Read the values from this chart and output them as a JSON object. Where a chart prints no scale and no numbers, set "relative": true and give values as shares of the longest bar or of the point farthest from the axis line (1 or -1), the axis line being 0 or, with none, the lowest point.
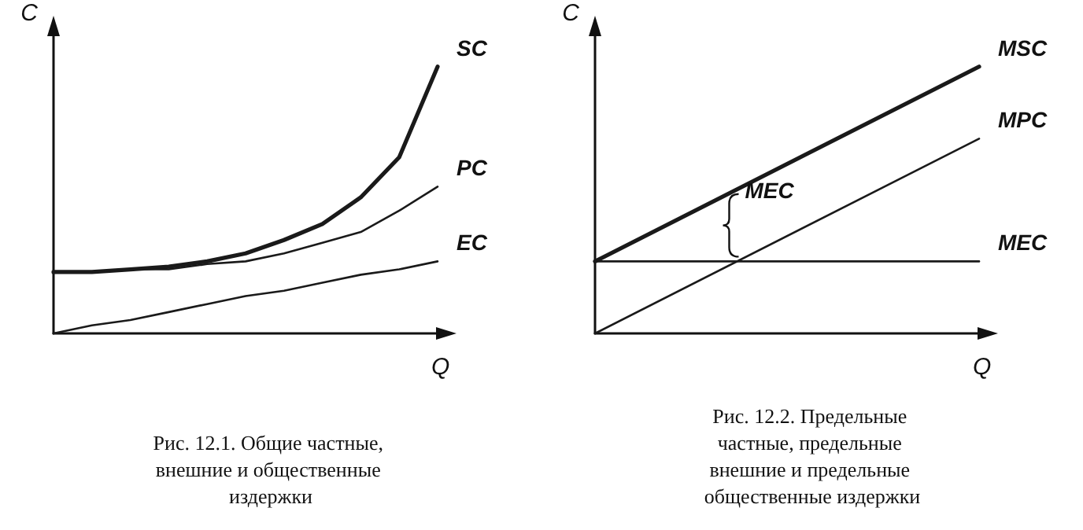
{
  "chart_data": [
    {
      "type": "line",
      "title": "Рис. 12.1. Общие частные, внешние и общественные издержки",
      "xlabel": "Q",
      "ylabel": "C",
      "relative": true,
      "grid": false,
      "legend": false,
      "marker": "none",
      "line_style": "solid",
      "categories": [
        null,
        null,
        null,
        null,
        null,
        null,
        null,
        null,
        null,
        null,
        null
      ],
      "series": [
        {
          "name": "SC",
          "color": "#1a1a1a",
          "values": [
            0.23,
            0.23,
            0.24,
            0.25,
            0.27,
            0.3,
            0.35,
            0.41,
            0.51,
            0.66,
            1
          ]
        },
        {
          "name": "PC",
          "color": "#1a1a1a",
          "values": [
            0.23,
            0.23,
            0.24,
            0.24,
            0.26,
            0.27,
            0.3,
            0.34,
            0.38,
            0.46,
            0.55
          ]
        },
        {
          "name": "EC",
          "color": "#1a1a1a",
          "values": [
            0,
            0.03,
            0.05,
            0.08,
            0.11,
            0.14,
            0.16,
            0.19,
            0.22,
            0.24,
            0.27
          ]
        }
      ]
    },
    {
      "type": "line",
      "title": "Рис. 12.2. Предельные частные, предельные внешние и предельные общественные издержки",
      "xlabel": "Q",
      "ylabel": "C",
      "relative": true,
      "grid": false,
      "legend": false,
      "marker": "none",
      "line_style": "solid",
      "annotations": [
        "MEC"
      ],
      "categories": [
        null,
        null
      ],
      "series": [
        {
          "name": "MSC",
          "color": "#1a1a1a",
          "values": [
            0.27,
            1
          ]
        },
        {
          "name": "MPC",
          "color": "#1a1a1a",
          "values": [
            0,
            0.73
          ]
        },
        {
          "name": "MEC",
          "color": "#1a1a1a",
          "values": [
            0.27,
            0.27
          ]
        }
      ]
    }
  ]
}
